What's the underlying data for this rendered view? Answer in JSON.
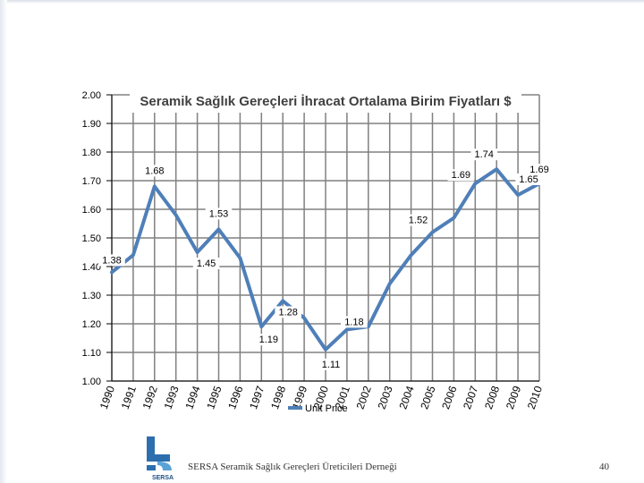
{
  "chart_data": {
    "type": "line",
    "title": "Seramik Sağlık Gereçleri İhracat Ortalama Birim Fiyatları $",
    "xlabel": "",
    "ylabel": "",
    "ylim": [
      1.0,
      2.0
    ],
    "yticks": [
      "1.00",
      "1.10",
      "1.20",
      "1.30",
      "1.40",
      "1.50",
      "1.60",
      "1.70",
      "1.80",
      "1.90",
      "2.00"
    ],
    "categories": [
      "1990",
      "1991",
      "1992",
      "1993",
      "1994",
      "1995",
      "1996",
      "1997",
      "1998",
      "1999",
      "2000",
      "2001",
      "2002",
      "2003",
      "2004",
      "2005",
      "2006",
      "2007",
      "2008",
      "2009",
      "2010"
    ],
    "series": [
      {
        "name": "Unit Price",
        "values": [
          1.38,
          1.44,
          1.68,
          1.58,
          1.45,
          1.53,
          1.43,
          1.19,
          1.28,
          1.22,
          1.11,
          1.18,
          1.19,
          1.34,
          1.44,
          1.52,
          1.57,
          1.69,
          1.74,
          1.65,
          1.69
        ]
      }
    ],
    "data_labels": [
      {
        "index": 0,
        "text": "1.38"
      },
      {
        "index": 2,
        "text": "1.68"
      },
      {
        "index": 4,
        "text": "1.45"
      },
      {
        "index": 5,
        "text": "1.53"
      },
      {
        "index": 7,
        "text": "1.19"
      },
      {
        "index": 8,
        "text": "1.28"
      },
      {
        "index": 10,
        "text": "1.11"
      },
      {
        "index": 11,
        "text": "1.18"
      },
      {
        "index": 15,
        "text": "1.52"
      },
      {
        "index": 17,
        "text": "1.69"
      },
      {
        "index": 18,
        "text": "1.74"
      },
      {
        "index": 19,
        "text": "1.65"
      },
      {
        "index": 20,
        "text": "1.69"
      }
    ],
    "legend": "bottom",
    "grid": true,
    "colors": {
      "line": "#4f7fb8",
      "grid": "#7f7f7f",
      "axis": "#000000"
    }
  },
  "footer": {
    "text": "SERSA Seramik Sağlık Gereçleri Üreticileri Derneği",
    "page": "40",
    "logo_text": "SERSA"
  }
}
